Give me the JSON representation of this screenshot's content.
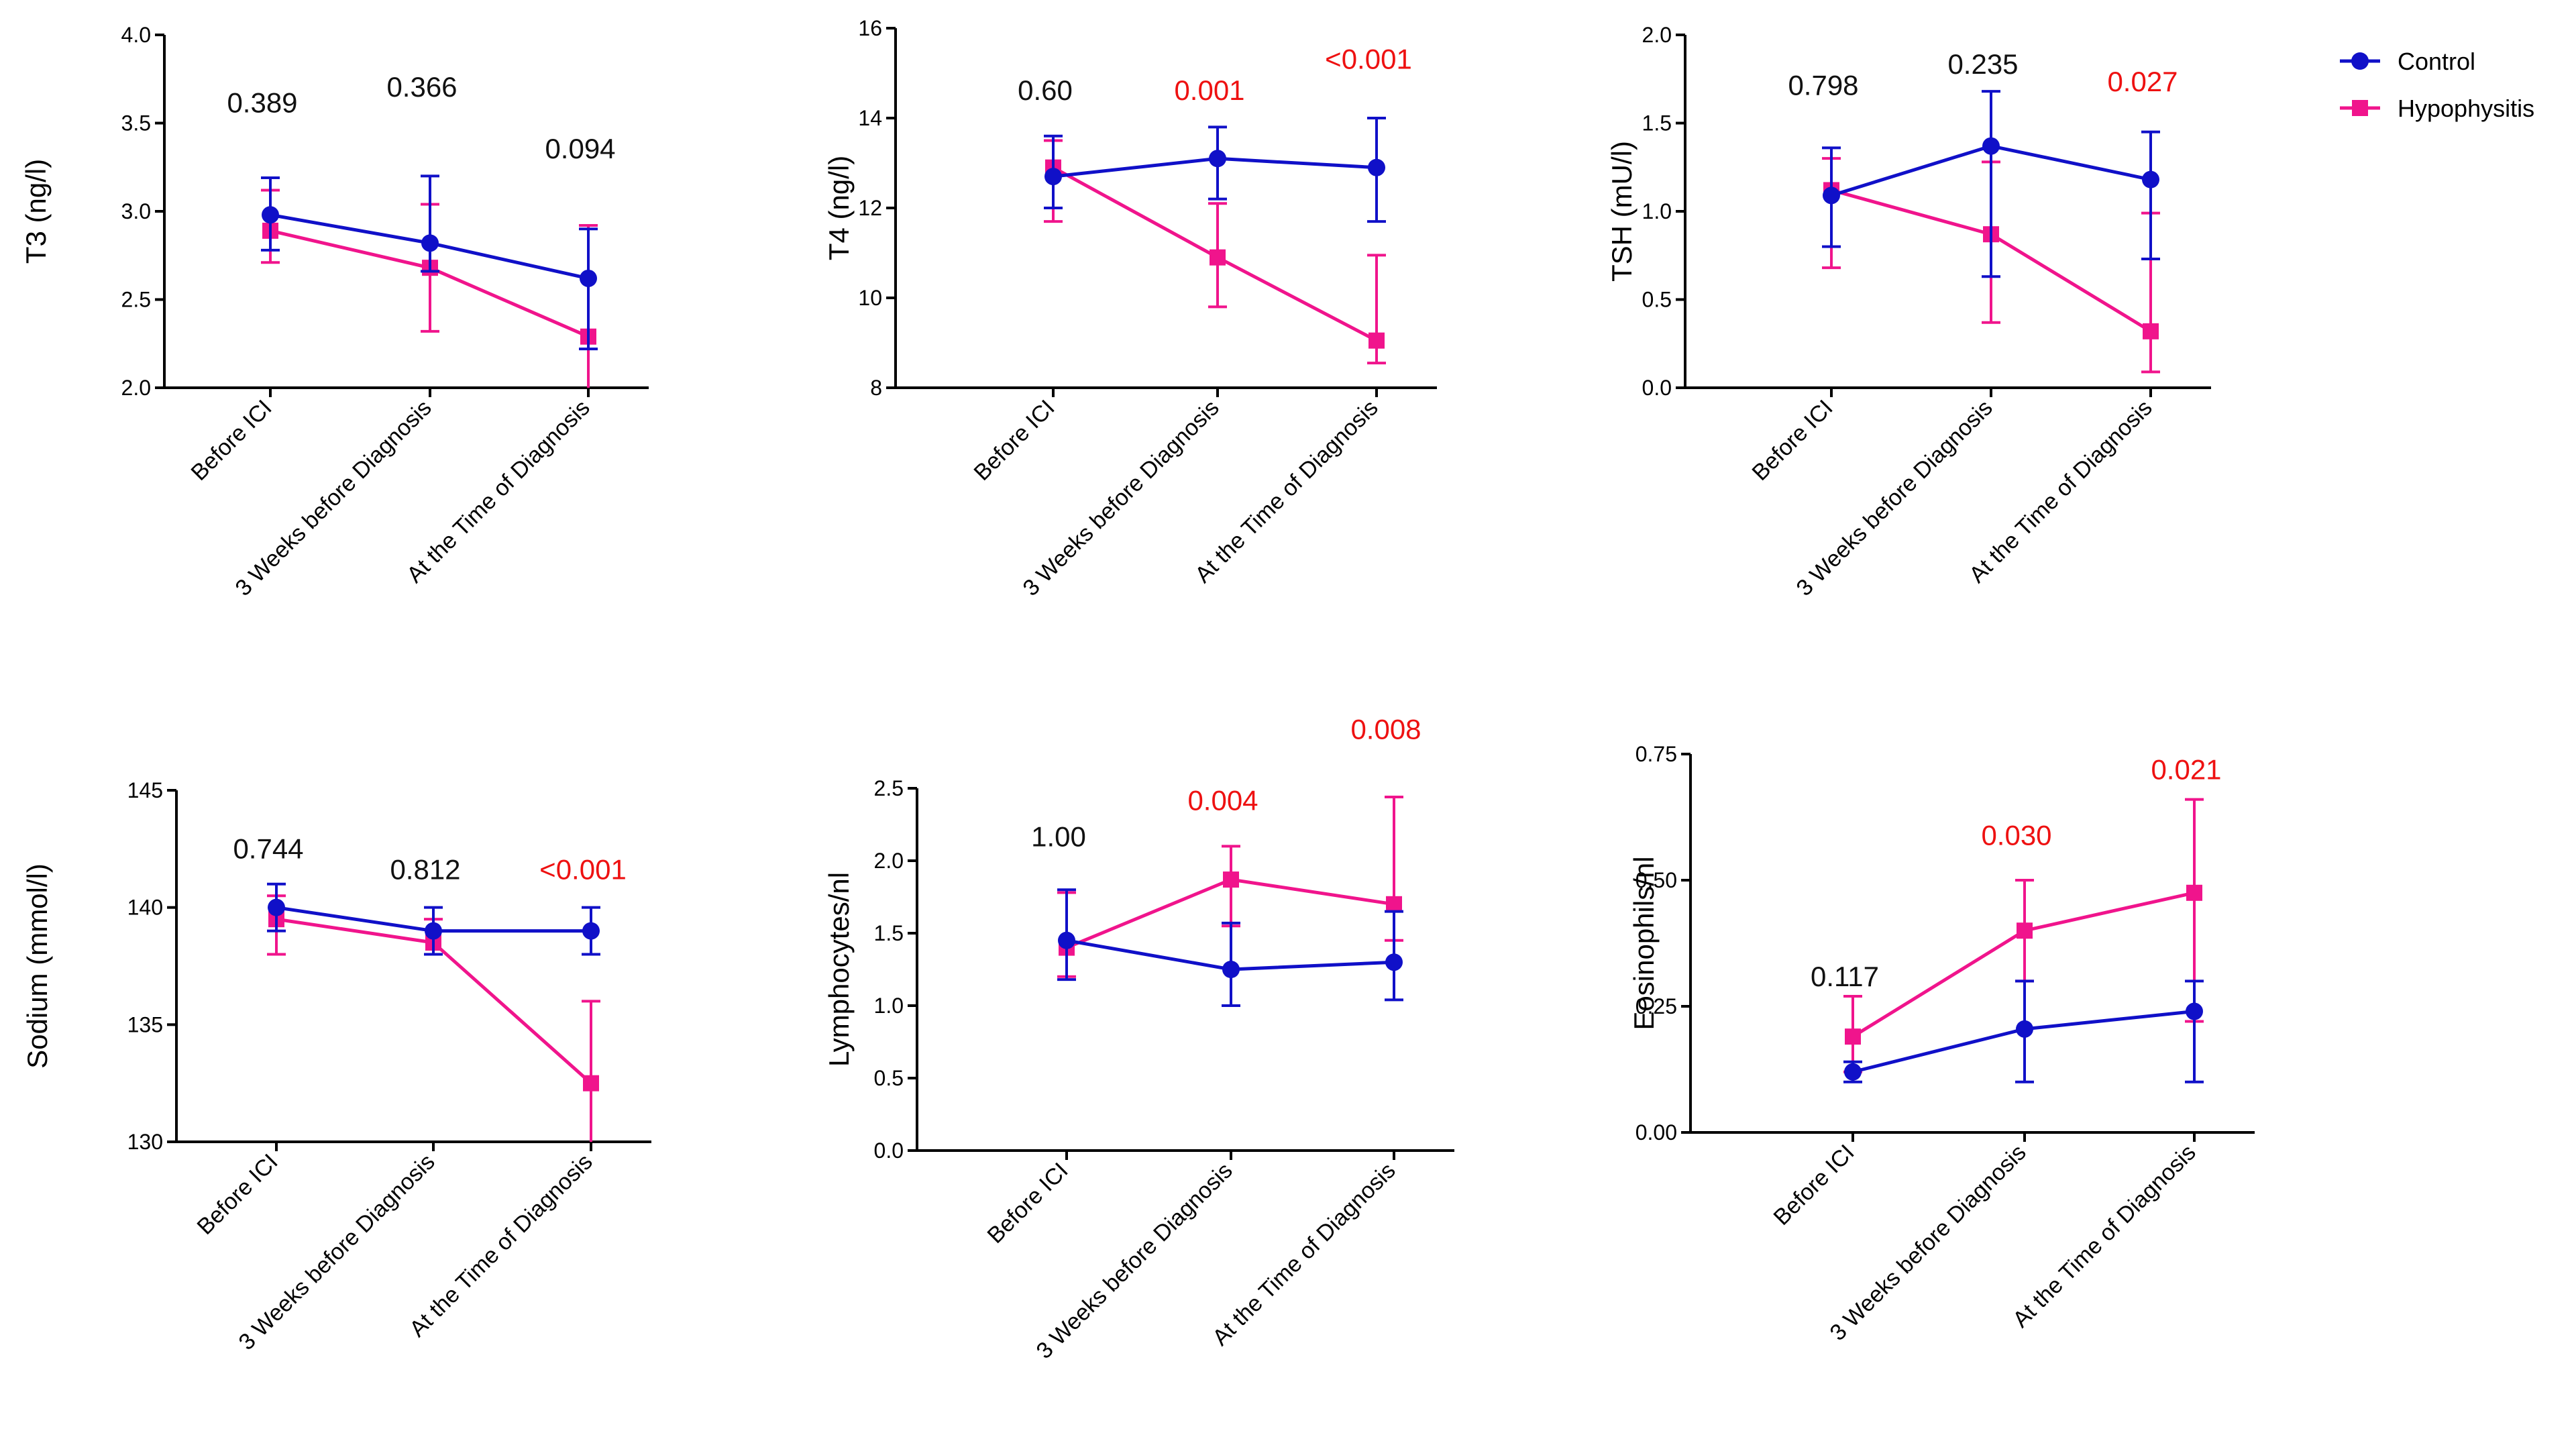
{
  "colors": {
    "control": "#1010C8",
    "hypophysitis": "#F0148C",
    "significant": "#EE1111",
    "nonsignificant": "#111111"
  },
  "legend": {
    "control": "Control",
    "hypophysitis": "Hypophysitis"
  },
  "chart_data": [
    {
      "type": "line",
      "ylabel": "T3 (ng/l)",
      "ylim": [
        2.0,
        4.0
      ],
      "yticks": [
        "2.0",
        "2.5",
        "3.0",
        "3.5",
        "4.0"
      ],
      "categories": [
        "Before ICI",
        "3 Weeks before Diagnosis",
        "At the Time of Diagnosis"
      ],
      "series": [
        {
          "name": "Control",
          "values": [
            2.98,
            2.82,
            2.62
          ],
          "err_low": [
            2.78,
            2.66,
            2.22
          ],
          "err_high": [
            3.19,
            3.2,
            2.9
          ]
        },
        {
          "name": "Hypophysitis",
          "values": [
            2.89,
            2.68,
            2.29
          ],
          "err_low": [
            2.71,
            2.32,
            2.0
          ],
          "err_high": [
            3.12,
            3.04,
            2.92
          ]
        }
      ],
      "pvalues": [
        "0.389",
        "0.366",
        "0.094"
      ],
      "pvalue_y": [
        3.56,
        3.65,
        3.3
      ],
      "significant": [
        false,
        false,
        false
      ]
    },
    {
      "type": "line",
      "ylabel": "T4 (ng/l)",
      "ylim": [
        8,
        16
      ],
      "yticks": [
        "8",
        "10",
        "12",
        "14",
        "16"
      ],
      "categories": [
        "Before ICI",
        "3 Weeks before Diagnosis",
        "At the Time of Diagnosis"
      ],
      "series": [
        {
          "name": "Control",
          "values": [
            12.7,
            13.1,
            12.9
          ],
          "err_low": [
            12.0,
            12.2,
            11.7
          ],
          "err_high": [
            13.6,
            13.8,
            14.0
          ]
        },
        {
          "name": "Hypophysitis",
          "values": [
            12.9,
            10.9,
            9.05
          ],
          "err_low": [
            11.7,
            9.8,
            8.55
          ],
          "err_high": [
            13.5,
            12.1,
            10.95
          ]
        }
      ],
      "pvalues": [
        "0.60",
        "0.001",
        "<0.001"
      ],
      "pvalue_y": [
        14.4,
        14.4,
        15.1
      ],
      "significant": [
        false,
        true,
        true
      ]
    },
    {
      "type": "line",
      "ylabel": "TSH (mU/l)",
      "ylim": [
        0.0,
        2.0
      ],
      "yticks": [
        "0.0",
        "0.5",
        "1.0",
        "1.5",
        "2.0"
      ],
      "categories": [
        "Before ICI",
        "3 Weeks before Diagnosis",
        "At the Time of Diagnosis"
      ],
      "series": [
        {
          "name": "Control",
          "values": [
            1.09,
            1.37,
            1.18
          ],
          "err_low": [
            0.8,
            0.63,
            0.73
          ],
          "err_high": [
            1.36,
            1.68,
            1.45
          ]
        },
        {
          "name": "Hypophysitis",
          "values": [
            1.12,
            0.87,
            0.32
          ],
          "err_low": [
            0.68,
            0.37,
            0.09
          ],
          "err_high": [
            1.3,
            1.28,
            0.99
          ]
        }
      ],
      "pvalues": [
        "0.798",
        "0.235",
        "0.027"
      ],
      "pvalue_y": [
        1.66,
        1.78,
        1.68
      ],
      "significant": [
        false,
        false,
        true
      ]
    },
    {
      "type": "line",
      "ylabel": "Sodium (mmol/l)",
      "ylim": [
        130,
        145
      ],
      "yticks": [
        "130",
        "135",
        "140",
        "145"
      ],
      "categories": [
        "Before ICI",
        "3 Weeks before Diagnosis",
        "At the Time of Diagnosis"
      ],
      "series": [
        {
          "name": "Control",
          "values": [
            140.0,
            139.0,
            139.0
          ],
          "err_low": [
            139.0,
            138.0,
            138.0
          ],
          "err_high": [
            141.0,
            140.0,
            140.0
          ]
        },
        {
          "name": "Hypophysitis",
          "values": [
            139.5,
            138.5,
            132.5
          ],
          "err_low": [
            138.0,
            138.0,
            130.0
          ],
          "err_high": [
            140.5,
            139.5,
            136.0
          ]
        }
      ],
      "pvalues": [
        "0.744",
        "0.812",
        "<0.001"
      ],
      "pvalue_y": [
        142.1,
        141.2,
        141.2
      ],
      "significant": [
        false,
        false,
        true
      ]
    },
    {
      "type": "line",
      "ylabel": "Lymphocytes/nl",
      "ylim": [
        0.0,
        2.5
      ],
      "yticks": [
        "0.0",
        "0.5",
        "1.0",
        "1.5",
        "2.0",
        "2.5"
      ],
      "categories": [
        "Before ICI",
        "3 Weeks before Diagnosis",
        "At the Time of Diagnosis"
      ],
      "series": [
        {
          "name": "Control",
          "values": [
            1.45,
            1.25,
            1.3
          ],
          "err_low": [
            1.18,
            1.0,
            1.04
          ],
          "err_high": [
            1.8,
            1.57,
            1.65
          ]
        },
        {
          "name": "Hypophysitis",
          "values": [
            1.4,
            1.87,
            1.7
          ],
          "err_low": [
            1.2,
            1.55,
            1.45
          ],
          "err_high": [
            1.78,
            2.1,
            2.44
          ]
        }
      ],
      "pvalues": [
        "1.00",
        "0.004",
        "0.008"
      ],
      "pvalue_y": [
        2.1,
        2.35,
        2.84
      ],
      "significant": [
        false,
        true,
        true
      ]
    },
    {
      "type": "line",
      "ylabel": "Eosinophils/nl",
      "ylim": [
        0.0,
        0.75
      ],
      "yticks": [
        "0.00",
        "0.25",
        "0.50",
        "0.75"
      ],
      "categories": [
        "Before ICI",
        "3 Weeks before Diagnosis",
        "At the Time of Diagnosis"
      ],
      "series": [
        {
          "name": "Control",
          "values": [
            0.12,
            0.205,
            0.24
          ],
          "err_low": [
            0.1,
            0.1,
            0.1
          ],
          "err_high": [
            0.14,
            0.3,
            0.3
          ]
        },
        {
          "name": "Hypophysitis",
          "values": [
            0.19,
            0.4,
            0.475
          ],
          "err_low": [
            0.12,
            0.3,
            0.22
          ],
          "err_high": [
            0.27,
            0.5,
            0.66
          ]
        }
      ],
      "pvalues": [
        "0.117",
        "0.030",
        "0.021"
      ],
      "pvalue_y": [
        0.29,
        0.57,
        0.7
      ],
      "significant": [
        false,
        true,
        true
      ]
    }
  ]
}
